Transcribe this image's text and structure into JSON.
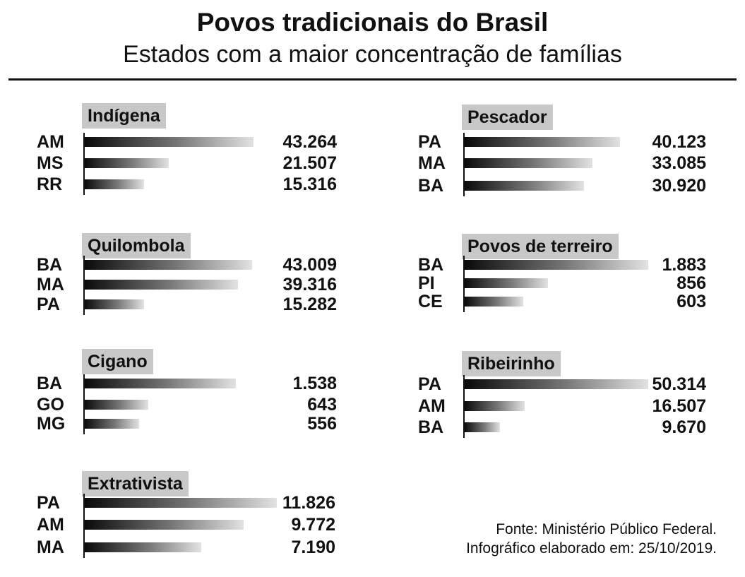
{
  "header": {
    "title": "Povos tradicionais do Brasil",
    "subtitle": "Estados com a maior concentração de famílias"
  },
  "footer": {
    "source": "Fonte: Ministério Público Federal.",
    "date_note": "Infográfico elaborado em: 25/10/2019."
  },
  "chart_data": [
    {
      "type": "bar",
      "orientation": "horizontal",
      "title": "Indígena",
      "categories": [
        "AM",
        "MS",
        "RR"
      ],
      "values": [
        43264,
        21507,
        15316
      ],
      "value_labels": [
        "43.264",
        "21.507",
        "15.316"
      ]
    },
    {
      "type": "bar",
      "orientation": "horizontal",
      "title": "Pescador",
      "categories": [
        "PA",
        "MA",
        "BA"
      ],
      "values": [
        40123,
        33085,
        30920
      ],
      "value_labels": [
        "40.123",
        "33.085",
        "30.920"
      ]
    },
    {
      "type": "bar",
      "orientation": "horizontal",
      "title": "Quilombola",
      "categories": [
        "BA",
        "MA",
        "PA"
      ],
      "values": [
        43009,
        39316,
        15282
      ],
      "value_labels": [
        "43.009",
        "39.316",
        "15.282"
      ]
    },
    {
      "type": "bar",
      "orientation": "horizontal",
      "title": "Povos de terreiro",
      "categories": [
        "BA",
        "PI",
        "CE"
      ],
      "values": [
        1883,
        856,
        603
      ],
      "value_labels": [
        "1.883",
        "856",
        "603"
      ]
    },
    {
      "type": "bar",
      "orientation": "horizontal",
      "title": "Cigano",
      "categories": [
        "BA",
        "GO",
        "MG"
      ],
      "values": [
        1538,
        643,
        556
      ],
      "value_labels": [
        "1.538",
        "643",
        "556"
      ]
    },
    {
      "type": "bar",
      "orientation": "horizontal",
      "title": "Ribeirinho",
      "categories": [
        "PA",
        "AM",
        "BA"
      ],
      "values": [
        50314,
        16507,
        9670
      ],
      "value_labels": [
        "50.314",
        "16.507",
        "9.670"
      ]
    },
    {
      "type": "bar",
      "orientation": "horizontal",
      "title": "Extrativista",
      "categories": [
        "PA",
        "AM",
        "MA"
      ],
      "values": [
        11826,
        9772,
        7190
      ],
      "value_labels": [
        "11.826",
        "9.772",
        "7.190"
      ]
    }
  ]
}
